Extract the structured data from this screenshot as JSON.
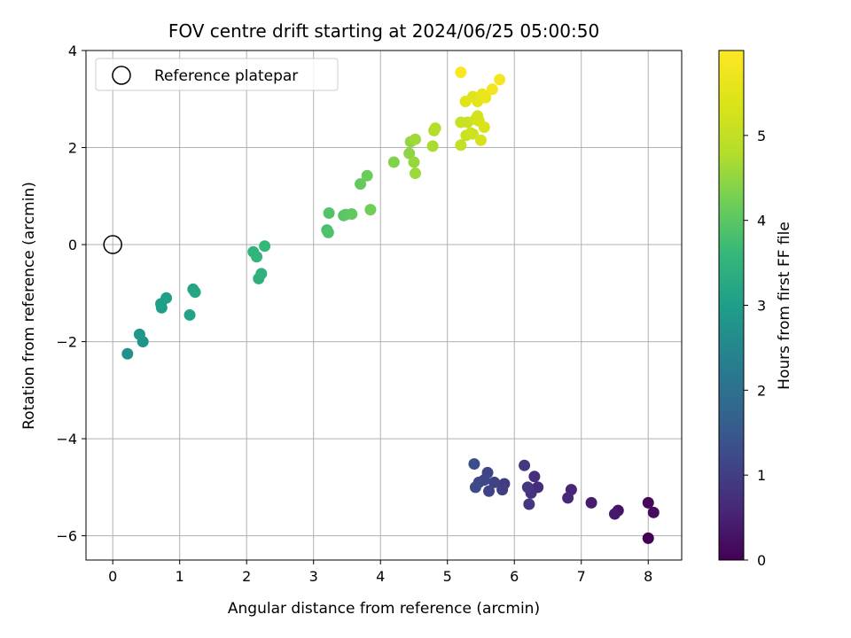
{
  "chart_data": {
    "type": "scatter",
    "title": "FOV centre drift starting at 2024/06/25 05:00:50",
    "xlabel": "Angular distance from reference (arcmin)",
    "ylabel": "Rotation from reference (arcmin)",
    "xlim": [
      -0.4,
      8.5
    ],
    "ylim": [
      -6.5,
      4.0
    ],
    "xticks": [
      0,
      1,
      2,
      3,
      4,
      5,
      6,
      7,
      8
    ],
    "yticks": [
      -6,
      -4,
      -2,
      0,
      2,
      4
    ],
    "grid": true,
    "legend": {
      "placement": "top-left",
      "entries": [
        {
          "label": "Reference platepar",
          "marker": "open-circle"
        }
      ]
    },
    "reference_point": {
      "x": 0,
      "y": 0
    },
    "colorbar": {
      "label": "Hours from first FF file",
      "colormap": "viridis",
      "range": [
        0,
        6.0
      ],
      "ticks": [
        0,
        1,
        2,
        3,
        4,
        5
      ]
    },
    "points": [
      {
        "x": 8.0,
        "y": -6.05,
        "h": 0.0
      },
      {
        "x": 8.0,
        "y": -5.32,
        "h": 0.1
      },
      {
        "x": 8.08,
        "y": -5.52,
        "h": 0.15
      },
      {
        "x": 7.55,
        "y": -5.48,
        "h": 0.3
      },
      {
        "x": 7.5,
        "y": -5.55,
        "h": 0.35
      },
      {
        "x": 7.15,
        "y": -5.32,
        "h": 0.45
      },
      {
        "x": 6.85,
        "y": -5.05,
        "h": 0.55
      },
      {
        "x": 6.8,
        "y": -5.22,
        "h": 0.6
      },
      {
        "x": 6.35,
        "y": -5.0,
        "h": 0.7
      },
      {
        "x": 6.3,
        "y": -4.78,
        "h": 0.75
      },
      {
        "x": 6.25,
        "y": -5.12,
        "h": 0.8
      },
      {
        "x": 6.22,
        "y": -5.35,
        "h": 0.85
      },
      {
        "x": 6.2,
        "y": -5.0,
        "h": 0.88
      },
      {
        "x": 6.15,
        "y": -4.55,
        "h": 0.9
      },
      {
        "x": 5.85,
        "y": -4.93,
        "h": 0.95
      },
      {
        "x": 5.82,
        "y": -5.05,
        "h": 1.0
      },
      {
        "x": 5.7,
        "y": -4.9,
        "h": 1.05
      },
      {
        "x": 5.62,
        "y": -5.08,
        "h": 1.1
      },
      {
        "x": 5.6,
        "y": -4.7,
        "h": 1.12
      },
      {
        "x": 5.55,
        "y": -4.85,
        "h": 1.15
      },
      {
        "x": 5.47,
        "y": -4.9,
        "h": 1.2
      },
      {
        "x": 5.42,
        "y": -5.0,
        "h": 1.25
      },
      {
        "x": 5.4,
        "y": -4.52,
        "h": 1.3
      },
      {
        "x": 0.22,
        "y": -2.25,
        "h": 2.7
      },
      {
        "x": 0.45,
        "y": -2.0,
        "h": 2.8
      },
      {
        "x": 0.4,
        "y": -1.85,
        "h": 2.85
      },
      {
        "x": 0.73,
        "y": -1.3,
        "h": 2.95
      },
      {
        "x": 0.72,
        "y": -1.22,
        "h": 3.0
      },
      {
        "x": 0.8,
        "y": -1.1,
        "h": 3.05
      },
      {
        "x": 1.15,
        "y": -1.45,
        "h": 3.1
      },
      {
        "x": 1.2,
        "y": -0.92,
        "h": 3.15
      },
      {
        "x": 1.23,
        "y": -0.98,
        "h": 3.2
      },
      {
        "x": 2.18,
        "y": -0.7,
        "h": 3.4
      },
      {
        "x": 2.22,
        "y": -0.6,
        "h": 3.45
      },
      {
        "x": 2.1,
        "y": -0.15,
        "h": 3.5
      },
      {
        "x": 2.15,
        "y": -0.25,
        "h": 3.55
      },
      {
        "x": 2.27,
        "y": -0.03,
        "h": 3.6
      },
      {
        "x": 3.2,
        "y": 0.3,
        "h": 3.8
      },
      {
        "x": 3.22,
        "y": 0.25,
        "h": 3.85
      },
      {
        "x": 3.23,
        "y": 0.65,
        "h": 3.9
      },
      {
        "x": 3.45,
        "y": 0.6,
        "h": 3.95
      },
      {
        "x": 3.48,
        "y": 0.62,
        "h": 4.0
      },
      {
        "x": 3.57,
        "y": 0.63,
        "h": 4.05
      },
      {
        "x": 3.7,
        "y": 1.25,
        "h": 4.1
      },
      {
        "x": 3.8,
        "y": 1.42,
        "h": 4.15
      },
      {
        "x": 3.85,
        "y": 0.72,
        "h": 4.2
      },
      {
        "x": 4.2,
        "y": 1.7,
        "h": 4.35
      },
      {
        "x": 4.43,
        "y": 1.88,
        "h": 4.45
      },
      {
        "x": 4.45,
        "y": 2.12,
        "h": 4.5
      },
      {
        "x": 4.5,
        "y": 1.7,
        "h": 4.55
      },
      {
        "x": 4.52,
        "y": 1.47,
        "h": 4.6
      },
      {
        "x": 4.52,
        "y": 2.17,
        "h": 4.62
      },
      {
        "x": 4.78,
        "y": 2.03,
        "h": 4.7
      },
      {
        "x": 4.8,
        "y": 2.35,
        "h": 4.75
      },
      {
        "x": 4.82,
        "y": 2.4,
        "h": 4.8
      },
      {
        "x": 5.2,
        "y": 2.05,
        "h": 5.0
      },
      {
        "x": 5.2,
        "y": 2.52,
        "h": 5.05
      },
      {
        "x": 5.28,
        "y": 2.25,
        "h": 5.1
      },
      {
        "x": 5.3,
        "y": 2.52,
        "h": 5.12
      },
      {
        "x": 5.35,
        "y": 2.3,
        "h": 5.15
      },
      {
        "x": 5.38,
        "y": 2.28,
        "h": 5.18
      },
      {
        "x": 5.42,
        "y": 2.58,
        "h": 5.2
      },
      {
        "x": 5.45,
        "y": 2.65,
        "h": 5.25
      },
      {
        "x": 5.47,
        "y": 2.55,
        "h": 5.28
      },
      {
        "x": 5.5,
        "y": 2.15,
        "h": 5.3
      },
      {
        "x": 5.55,
        "y": 2.42,
        "h": 5.35
      },
      {
        "x": 5.27,
        "y": 2.95,
        "h": 5.45
      },
      {
        "x": 5.38,
        "y": 3.05,
        "h": 5.5
      },
      {
        "x": 5.45,
        "y": 2.95,
        "h": 5.55
      },
      {
        "x": 5.52,
        "y": 3.1,
        "h": 5.6
      },
      {
        "x": 5.57,
        "y": 3.03,
        "h": 5.65
      },
      {
        "x": 5.67,
        "y": 3.2,
        "h": 5.75
      },
      {
        "x": 5.78,
        "y": 3.4,
        "h": 5.85
      },
      {
        "x": 5.2,
        "y": 3.55,
        "h": 5.95
      }
    ]
  }
}
